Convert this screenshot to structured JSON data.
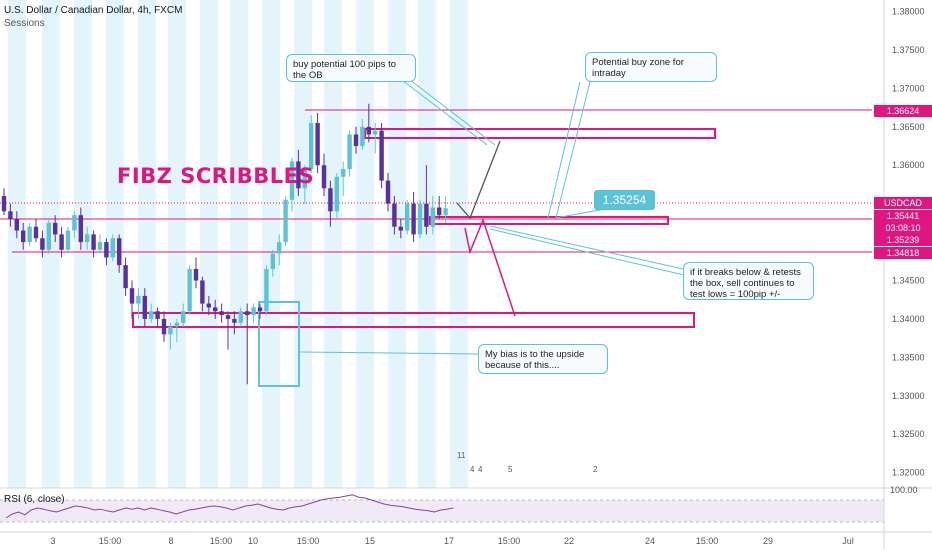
{
  "header": {
    "title": "U.S. Dollar / Canadian Dollar, 4h, FXCM",
    "indicator": "Sessions"
  },
  "colors": {
    "up": "#5bc3d8",
    "down": "#5a2fa0",
    "pink": "#e0157f",
    "session": "#e3f4fa",
    "price_tag": "#5a2fa0"
  },
  "annotations": {
    "scribble": "FIBZ SCRIBBLES",
    "buy_ob": "buy potential 100 pips to the OB",
    "buy_zone": "Potential buy zone for intraday",
    "breaks_below": "if it breaks below & retests the box, sell continues to test lows = 100pip +/-",
    "bias": "My bias is to the upside because of this....",
    "badge_price": "1.35254"
  },
  "price_labels": {
    "symbol": "USDCAD",
    "last": "1.35441",
    "countdown": "03:08:10",
    "line_1": "1.36624",
    "line_2": "1.35239",
    "line_3": "1.34818"
  },
  "event_markers": [
    "11",
    "4",
    "4",
    "5",
    "2"
  ],
  "rsi": {
    "label": "RSI (6, close)",
    "upper_tick": "100.00",
    "values": [
      30,
      40,
      45,
      38,
      50,
      55,
      52,
      48,
      45,
      50,
      55,
      60,
      58,
      55,
      50,
      52,
      48,
      45,
      50,
      55,
      52,
      55,
      50,
      55,
      52,
      48,
      45,
      40,
      45,
      50,
      52,
      55,
      58,
      60,
      58,
      55,
      50,
      55,
      60,
      62,
      65,
      60,
      55,
      52,
      50,
      55,
      58,
      60,
      65,
      70,
      75,
      78,
      80,
      82,
      85,
      88,
      82,
      80,
      75,
      70,
      65,
      62,
      60,
      58,
      55,
      52,
      50,
      48,
      45,
      50,
      52,
      55
    ]
  },
  "chart_data": {
    "type": "candlestick",
    "title": "U.S. Dollar / Canadian Dollar, 4h, FXCM",
    "y_axis": {
      "ticks": [
        "1.38000",
        "1.37500",
        "1.37000",
        "1.36500",
        "1.36000",
        "1.35500",
        "1.35000",
        "1.34500",
        "1.34000",
        "1.33500",
        "1.33000",
        "1.32500",
        "1.32000"
      ],
      "range": [
        1.318,
        1.3815
      ]
    },
    "x_axis": {
      "ticks": [
        "3",
        "15:00",
        "8",
        "15:00",
        "10",
        "15:00",
        "15",
        "17",
        "15:00",
        "22",
        "24",
        "15:00",
        "29",
        "Jul"
      ]
    },
    "candles": [
      {
        "o": 1.356,
        "h": 1.357,
        "l": 1.3535,
        "c": 1.354
      },
      {
        "o": 1.354,
        "h": 1.355,
        "l": 1.352,
        "c": 1.353
      },
      {
        "o": 1.353,
        "h": 1.354,
        "l": 1.3505,
        "c": 1.3515
      },
      {
        "o": 1.3515,
        "h": 1.3525,
        "l": 1.349,
        "c": 1.35
      },
      {
        "o": 1.35,
        "h": 1.3525,
        "l": 1.3495,
        "c": 1.352
      },
      {
        "o": 1.352,
        "h": 1.353,
        "l": 1.35,
        "c": 1.3505
      },
      {
        "o": 1.3505,
        "h": 1.3515,
        "l": 1.348,
        "c": 1.349
      },
      {
        "o": 1.349,
        "h": 1.353,
        "l": 1.3485,
        "c": 1.3525
      },
      {
        "o": 1.3525,
        "h": 1.3535,
        "l": 1.35,
        "c": 1.351
      },
      {
        "o": 1.351,
        "h": 1.352,
        "l": 1.348,
        "c": 1.349
      },
      {
        "o": 1.349,
        "h": 1.352,
        "l": 1.3485,
        "c": 1.3515
      },
      {
        "o": 1.3515,
        "h": 1.354,
        "l": 1.3505,
        "c": 1.3535
      },
      {
        "o": 1.3535,
        "h": 1.3545,
        "l": 1.349,
        "c": 1.35
      },
      {
        "o": 1.35,
        "h": 1.352,
        "l": 1.349,
        "c": 1.351
      },
      {
        "o": 1.351,
        "h": 1.3515,
        "l": 1.348,
        "c": 1.349
      },
      {
        "o": 1.349,
        "h": 1.351,
        "l": 1.3485,
        "c": 1.35
      },
      {
        "o": 1.35,
        "h": 1.3505,
        "l": 1.347,
        "c": 1.348
      },
      {
        "o": 1.348,
        "h": 1.351,
        "l": 1.3475,
        "c": 1.3505
      },
      {
        "o": 1.3505,
        "h": 1.351,
        "l": 1.346,
        "c": 1.347
      },
      {
        "o": 1.347,
        "h": 1.348,
        "l": 1.343,
        "c": 1.344
      },
      {
        "o": 1.344,
        "h": 1.345,
        "l": 1.34,
        "c": 1.342
      },
      {
        "o": 1.342,
        "h": 1.344,
        "l": 1.34,
        "c": 1.343
      },
      {
        "o": 1.343,
        "h": 1.344,
        "l": 1.339,
        "c": 1.34
      },
      {
        "o": 1.34,
        "h": 1.342,
        "l": 1.3395,
        "c": 1.341
      },
      {
        "o": 1.341,
        "h": 1.3415,
        "l": 1.339,
        "c": 1.34
      },
      {
        "o": 1.34,
        "h": 1.341,
        "l": 1.337,
        "c": 1.338
      },
      {
        "o": 1.338,
        "h": 1.3395,
        "l": 1.336,
        "c": 1.339
      },
      {
        "o": 1.339,
        "h": 1.34,
        "l": 1.337,
        "c": 1.3395
      },
      {
        "o": 1.3395,
        "h": 1.342,
        "l": 1.339,
        "c": 1.341
      },
      {
        "o": 1.341,
        "h": 1.347,
        "l": 1.3405,
        "c": 1.3465
      },
      {
        "o": 1.3465,
        "h": 1.348,
        "l": 1.344,
        "c": 1.345
      },
      {
        "o": 1.345,
        "h": 1.3455,
        "l": 1.341,
        "c": 1.342
      },
      {
        "o": 1.342,
        "h": 1.343,
        "l": 1.3405,
        "c": 1.3415
      },
      {
        "o": 1.3415,
        "h": 1.3425,
        "l": 1.34,
        "c": 1.341
      },
      {
        "o": 1.341,
        "h": 1.342,
        "l": 1.3395,
        "c": 1.3405
      },
      {
        "o": 1.3405,
        "h": 1.341,
        "l": 1.336,
        "c": 1.34
      },
      {
        "o": 1.34,
        "h": 1.341,
        "l": 1.338,
        "c": 1.3395
      },
      {
        "o": 1.3395,
        "h": 1.3415,
        "l": 1.339,
        "c": 1.341
      },
      {
        "o": 1.341,
        "h": 1.342,
        "l": 1.3315,
        "c": 1.3405
      },
      {
        "o": 1.3405,
        "h": 1.342,
        "l": 1.3395,
        "c": 1.3415
      },
      {
        "o": 1.3415,
        "h": 1.342,
        "l": 1.34,
        "c": 1.341
      },
      {
        "o": 1.341,
        "h": 1.347,
        "l": 1.3405,
        "c": 1.3465
      },
      {
        "o": 1.3465,
        "h": 1.349,
        "l": 1.3455,
        "c": 1.3485
      },
      {
        "o": 1.3485,
        "h": 1.351,
        "l": 1.347,
        "c": 1.35
      },
      {
        "o": 1.35,
        "h": 1.356,
        "l": 1.3495,
        "c": 1.3555
      },
      {
        "o": 1.3555,
        "h": 1.361,
        "l": 1.354,
        "c": 1.3605
      },
      {
        "o": 1.3605,
        "h": 1.362,
        "l": 1.356,
        "c": 1.357
      },
      {
        "o": 1.357,
        "h": 1.36,
        "l": 1.355,
        "c": 1.3595
      },
      {
        "o": 1.3595,
        "h": 1.3665,
        "l": 1.359,
        "c": 1.3655
      },
      {
        "o": 1.3655,
        "h": 1.3668,
        "l": 1.359,
        "c": 1.36
      },
      {
        "o": 1.36,
        "h": 1.3615,
        "l": 1.356,
        "c": 1.357
      },
      {
        "o": 1.357,
        "h": 1.358,
        "l": 1.352,
        "c": 1.354
      },
      {
        "o": 1.354,
        "h": 1.359,
        "l": 1.353,
        "c": 1.3585
      },
      {
        "o": 1.3585,
        "h": 1.3605,
        "l": 1.356,
        "c": 1.3595
      },
      {
        "o": 1.3595,
        "h": 1.3645,
        "l": 1.3585,
        "c": 1.364
      },
      {
        "o": 1.364,
        "h": 1.365,
        "l": 1.3615,
        "c": 1.3625
      },
      {
        "o": 1.3625,
        "h": 1.366,
        "l": 1.362,
        "c": 1.365
      },
      {
        "o": 1.365,
        "h": 1.368,
        "l": 1.363,
        "c": 1.364
      },
      {
        "o": 1.364,
        "h": 1.3655,
        "l": 1.3615,
        "c": 1.3645
      },
      {
        "o": 1.3645,
        "h": 1.3655,
        "l": 1.357,
        "c": 1.358
      },
      {
        "o": 1.358,
        "h": 1.359,
        "l": 1.354,
        "c": 1.355
      },
      {
        "o": 1.355,
        "h": 1.356,
        "l": 1.351,
        "c": 1.352
      },
      {
        "o": 1.352,
        "h": 1.353,
        "l": 1.3505,
        "c": 1.3515
      },
      {
        "o": 1.3515,
        "h": 1.3555,
        "l": 1.351,
        "c": 1.355
      },
      {
        "o": 1.355,
        "h": 1.3565,
        "l": 1.35,
        "c": 1.351
      },
      {
        "o": 1.351,
        "h": 1.3555,
        "l": 1.3505,
        "c": 1.355
      },
      {
        "o": 1.355,
        "h": 1.36,
        "l": 1.351,
        "c": 1.352
      },
      {
        "o": 1.352,
        "h": 1.356,
        "l": 1.351,
        "c": 1.3545
      },
      {
        "o": 1.3545,
        "h": 1.356,
        "l": 1.353,
        "c": 1.3535
      },
      {
        "o": 1.3535,
        "h": 1.356,
        "l": 1.3525,
        "c": 1.3544
      }
    ]
  }
}
